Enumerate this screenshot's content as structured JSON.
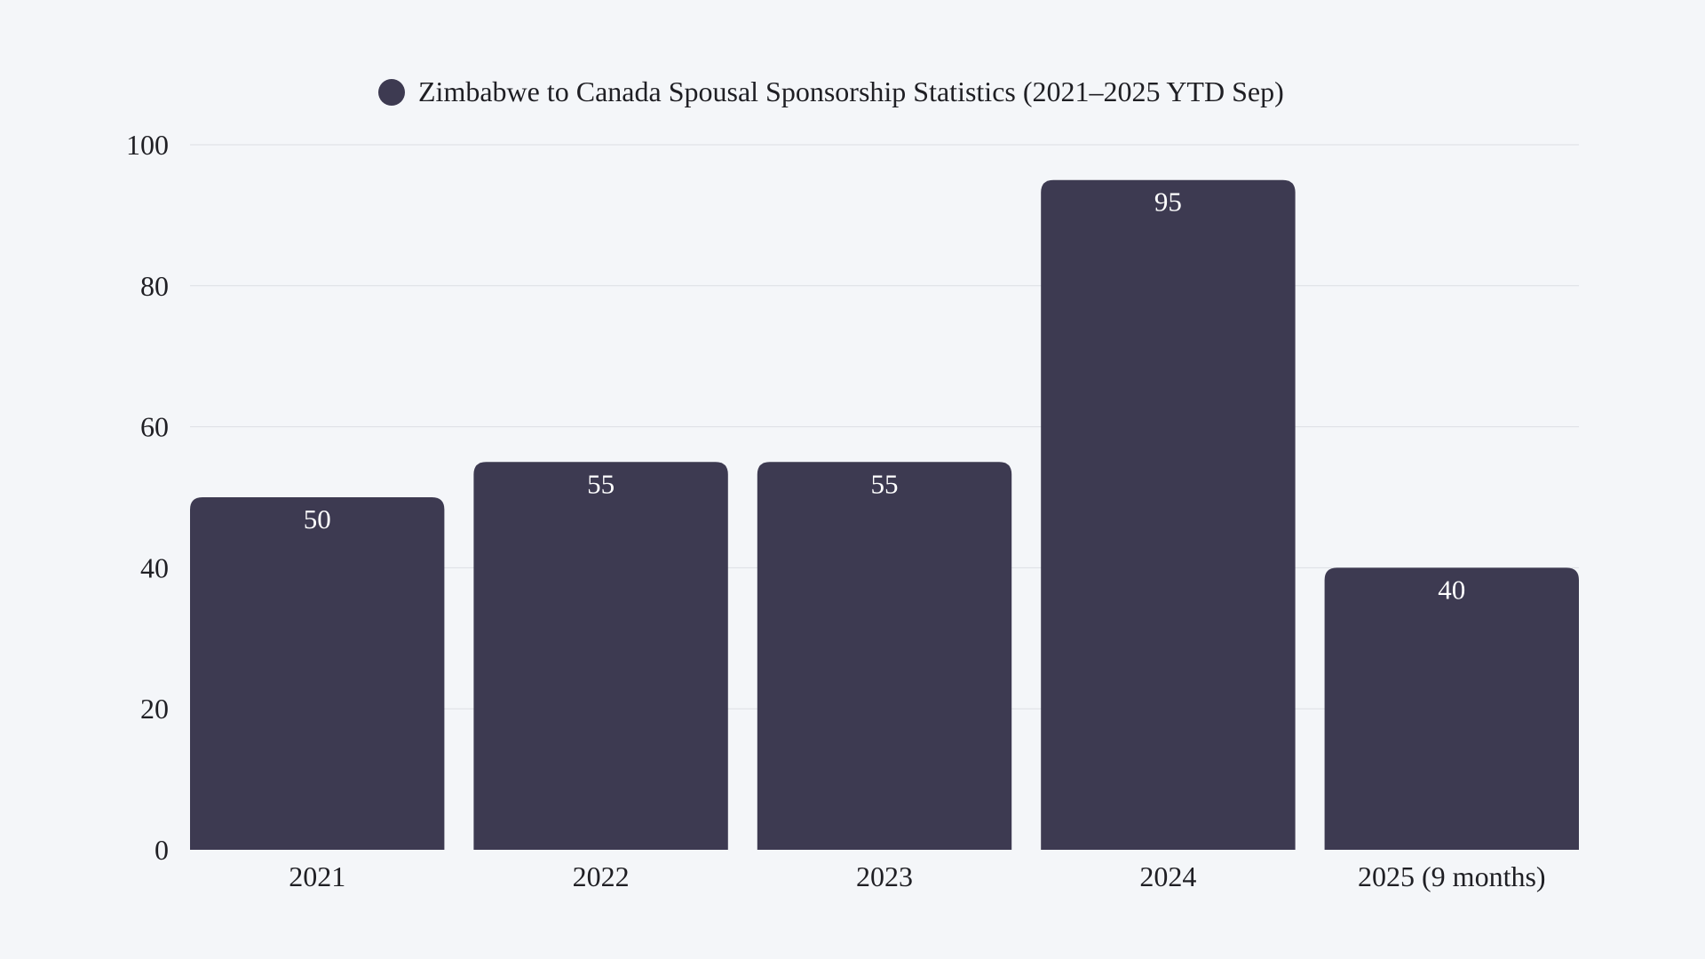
{
  "chart_data": {
    "type": "bar",
    "title": "",
    "legend": {
      "position": "top",
      "entries": [
        "Zimbabwe to Canada Spousal Sponsorship Statistics (2021–2025 YTD Sep)"
      ]
    },
    "series": [
      {
        "name": "Zimbabwe to Canada Spousal Sponsorship Statistics (2021–2025 YTD Sep)",
        "values": [
          50,
          55,
          55,
          95,
          40
        ],
        "color": "#3d3a51"
      }
    ],
    "categories": [
      "2021",
      "2022",
      "2023",
      "2024",
      "2025 (9 months)"
    ],
    "xlabel": "",
    "ylabel": "",
    "ylim": [
      0,
      100
    ],
    "yticks": [
      "0",
      "20",
      "40",
      "60",
      "80",
      "100"
    ],
    "grid": true,
    "data_labels": [
      "50",
      "55",
      "55",
      "95",
      "40"
    ],
    "background": "#f4f6f9"
  }
}
